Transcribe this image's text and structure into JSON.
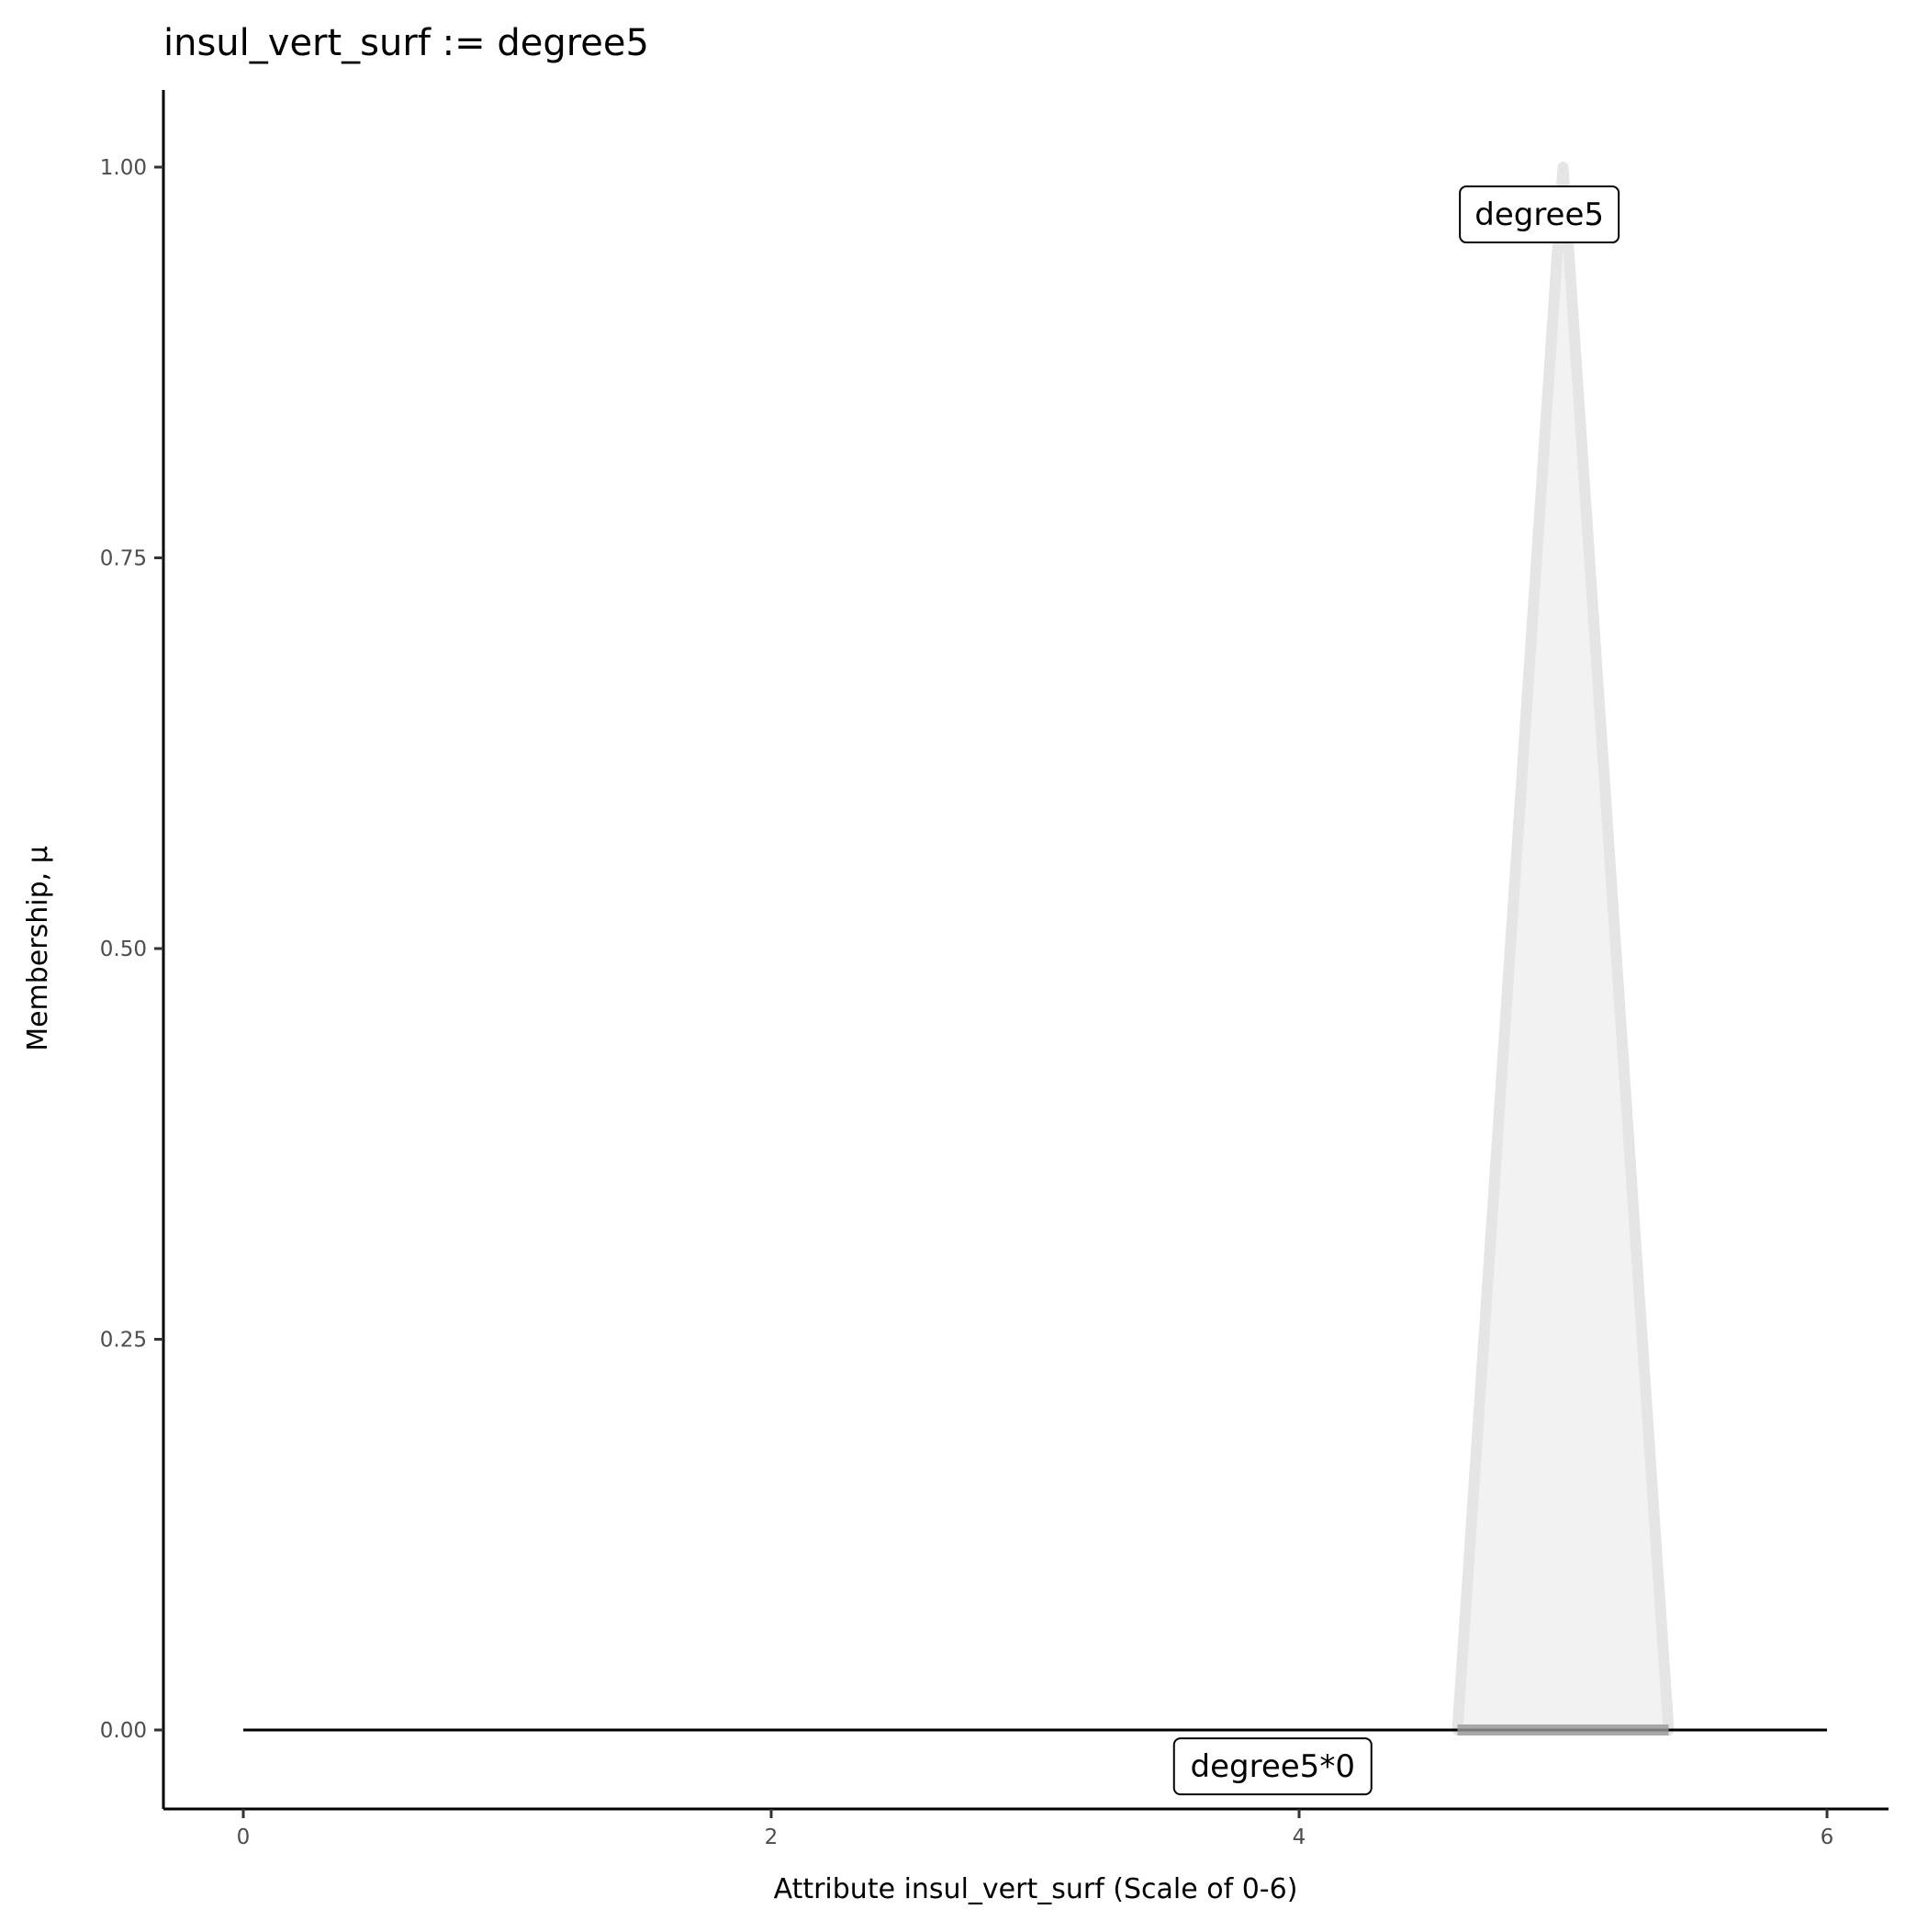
{
  "chart_data": {
    "type": "area",
    "title": "insul_vert_surf := degree5",
    "xlabel": "Attribute insul_vert_surf (Scale of 0-6)",
    "ylabel": "Membership, μ",
    "xlim": [
      -0.3,
      6.3
    ],
    "ylim": [
      -0.05,
      1.05
    ],
    "xticks": [
      0,
      2,
      4,
      6
    ],
    "xtick_labels": [
      "0",
      "2",
      "4",
      "6"
    ],
    "yticks": [
      0,
      0.25,
      0.5,
      0.75,
      1
    ],
    "ytick_labels": [
      "0.00",
      "0.25",
      "0.50",
      "0.75",
      "1.00"
    ],
    "grid": false,
    "series": [
      {
        "name": "degree5",
        "x": [
          4.6,
          5.0,
          5.4
        ],
        "y": [
          0,
          1,
          0
        ],
        "fill": "#f2f2f2",
        "stroke": "#e5e5e5"
      },
      {
        "name": "degree5*0",
        "x": [
          4.6,
          5.0,
          5.4
        ],
        "y": [
          0,
          0,
          0
        ],
        "stroke": "#999999"
      }
    ],
    "baseline": {
      "x": [
        0,
        6
      ],
      "y": [
        0,
        0
      ],
      "color": "#000000"
    },
    "annotations": [
      {
        "text": "degree5",
        "x": 4.91,
        "y": 0.97
      },
      {
        "text": "degree5*0",
        "x": 3.9,
        "y": -0.023
      }
    ]
  }
}
